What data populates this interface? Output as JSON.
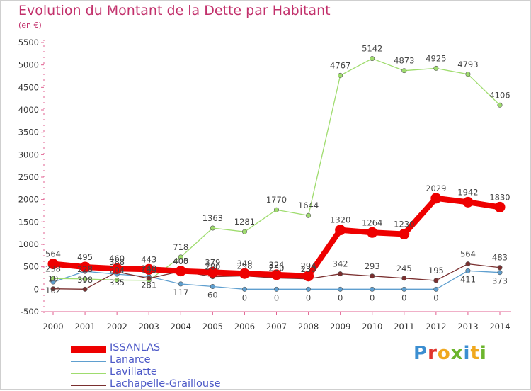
{
  "title": "Evolution du Montant de la Dette par Habitant",
  "subtitle": "(en €)",
  "logo": {
    "text": "Proxiti",
    "colors": [
      "#3b8ed1",
      "#e0342c",
      "#f0a81e",
      "#6cb52d",
      "#3b8ed1",
      "#f0a81e",
      "#6cb52d"
    ]
  },
  "chart_data": {
    "type": "line",
    "categories": [
      "2000",
      "2001",
      "2002",
      "2003",
      "2004",
      "2005",
      "2006",
      "2007",
      "2008",
      "2009",
      "2010",
      "2011",
      "2012",
      "2013",
      "2014"
    ],
    "ylim": [
      -500,
      5500
    ],
    "yticks": [
      -500,
      0,
      500,
      1000,
      1500,
      2000,
      2500,
      3000,
      3500,
      4000,
      4500,
      5000,
      5500
    ],
    "grid": false,
    "legend_position": "bottom-left",
    "series": [
      {
        "name": "ISSANLAS",
        "color": "#ee0000",
        "values": [
          564,
          495,
          460,
          443,
          405,
          379,
          349,
          324,
          294,
          1320,
          1264,
          1230,
          2029,
          1942,
          1830
        ],
        "labels": [
          "564",
          "495",
          "460",
          "443",
          "405",
          "379",
          "349",
          "324",
          "294",
          "1320",
          "1264",
          "1230",
          "2029",
          "1942",
          "1830"
        ]
      },
      {
        "name": "Lanarce",
        "color": "#5f9fcf",
        "values": [
          162,
          398,
          335,
          281,
          117,
          60,
          0,
          0,
          0,
          0,
          0,
          0,
          0,
          411,
          373
        ],
        "labels": [
          "162",
          "398",
          "335",
          "281",
          "117",
          "60",
          "0",
          "0",
          "0",
          "0",
          "0",
          "0",
          "0",
          "411",
          "373"
        ]
      },
      {
        "name": "Lavillatte",
        "color": "#9fdc6e",
        "values": [
          238,
          228,
          204,
          199,
          718,
          1363,
          1281,
          1770,
          1644,
          4767,
          5142,
          4873,
          4925,
          4793,
          4106
        ],
        "labels": [
          "238",
          "228",
          "204",
          "199",
          "718",
          "1363",
          "1281",
          "1770",
          "1644",
          "4767",
          "5142",
          "4873",
          "4925",
          "4793",
          "4106"
        ]
      },
      {
        "name": "Lachapelle-Graillouse",
        "color": "#7a2f2f",
        "values": [
          10,
          0,
          388,
          240,
          400,
          280,
          298,
          250,
          230,
          342,
          293,
          245,
          195,
          564,
          483
        ],
        "labels": [
          "10",
          "0",
          "388",
          "240",
          "400",
          "280",
          "298",
          "250",
          "230",
          "342",
          "293",
          "245",
          "195",
          "564",
          "483"
        ]
      }
    ]
  }
}
